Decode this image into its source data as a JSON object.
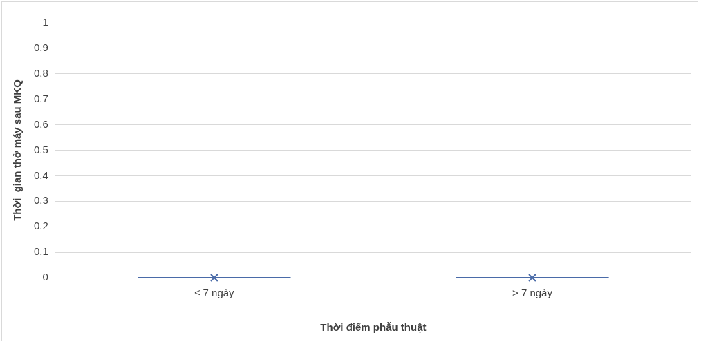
{
  "chart_data": {
    "type": "box",
    "xlabel": "Thời điểm phẫu thuật",
    "ylabel": "Thời  gian thở máy sau MKQ",
    "categories": [
      "≤ 7 ngày",
      "> 7 ngày"
    ],
    "series": [
      {
        "color": "#4a6ba8",
        "boxes": [
          {
            "low": 0,
            "q1": 0,
            "median": 0,
            "q3": 0,
            "high": 0,
            "mean": 0
          },
          {
            "low": 0,
            "q1": 0,
            "median": 0,
            "q3": 0,
            "high": 0,
            "mean": 0
          }
        ]
      }
    ],
    "ylim": [
      0,
      1
    ],
    "yticks": [
      0,
      0.1,
      0.2,
      0.3,
      0.4,
      0.5,
      0.6,
      0.7,
      0.8,
      0.9,
      1
    ],
    "grid": "y",
    "legend": false,
    "marker": "cross"
  }
}
